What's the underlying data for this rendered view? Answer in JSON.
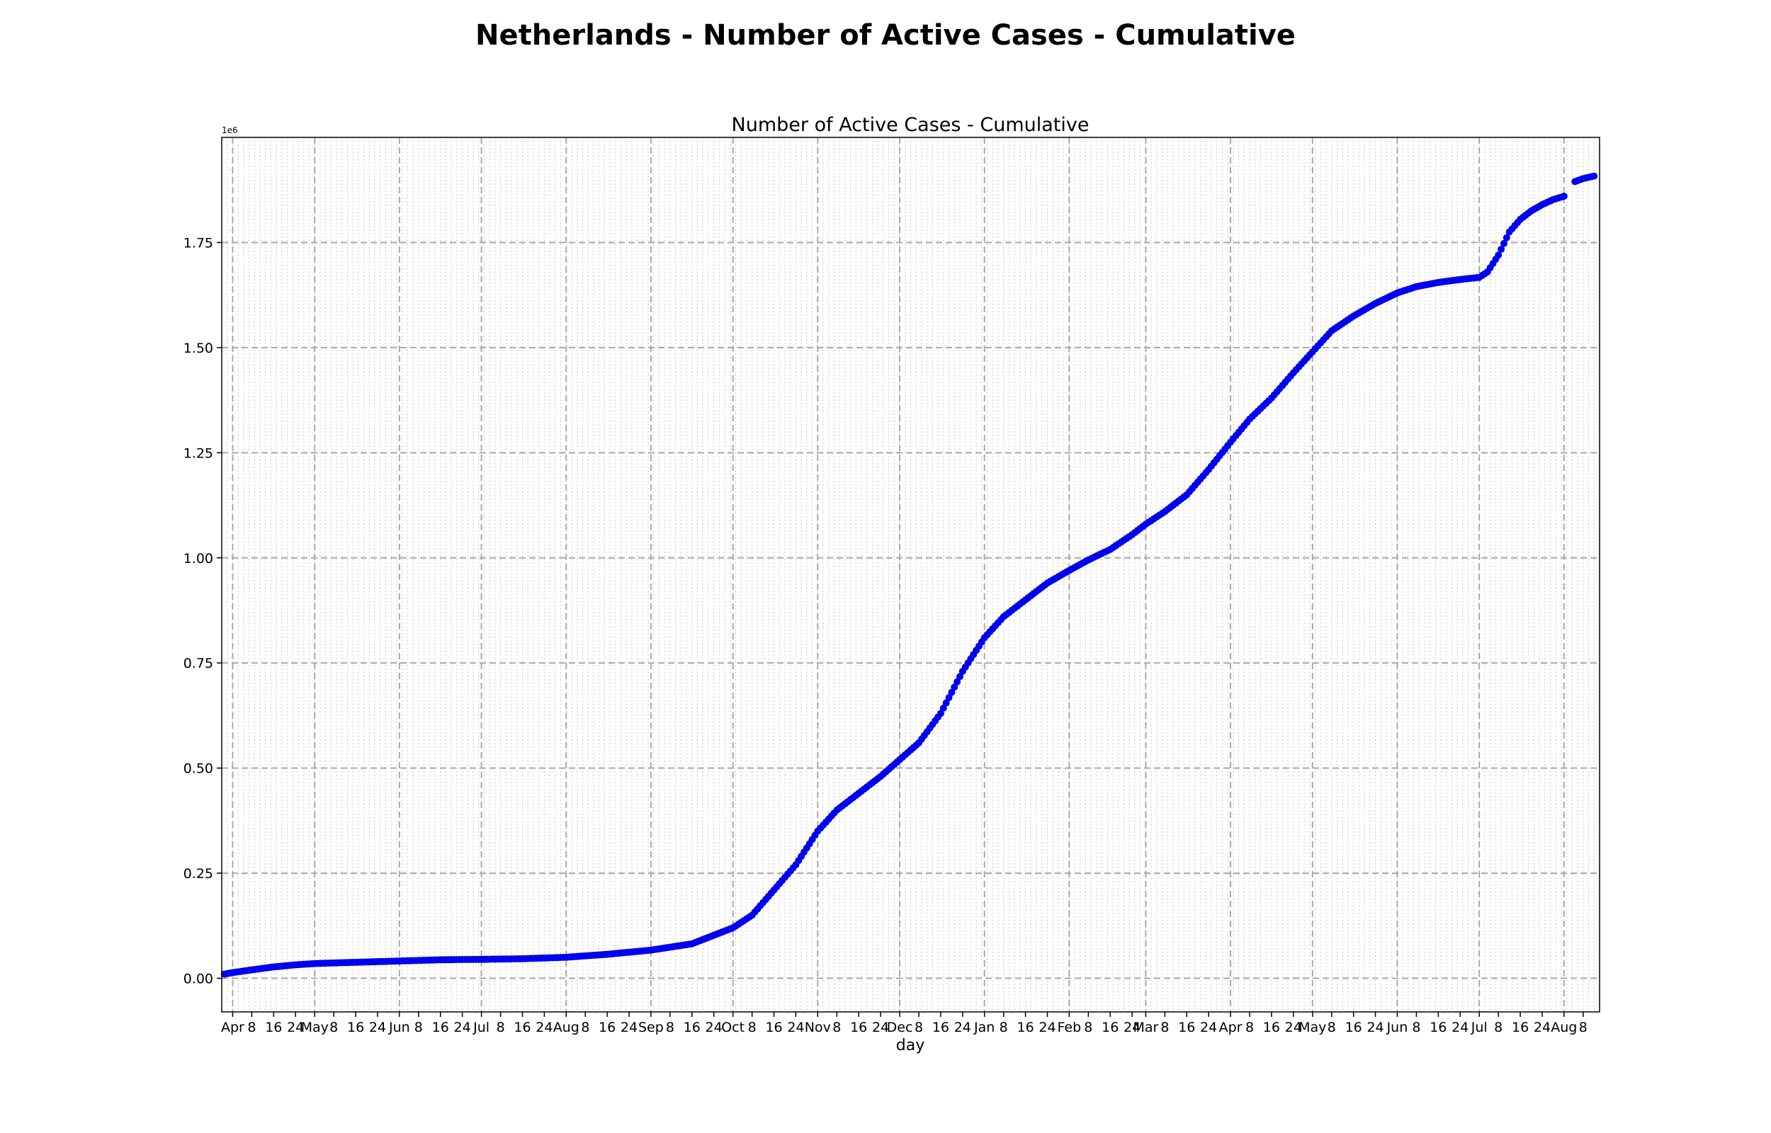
{
  "chart_data": {
    "type": "scatter",
    "title": "Netherlands - Number of Active Cases - Cumulative",
    "subtitle": "Number of Active Cases - Cumulative",
    "xlabel": "day",
    "ylabel": "",
    "y_offset_label": "1e6",
    "x_range": [
      "2020-03-28",
      "2021-08-14"
    ],
    "ylim": [
      -80000,
      2000000
    ],
    "y_ticks": [
      0,
      250000,
      500000,
      750000,
      1000000,
      1250000,
      1500000,
      1750000
    ],
    "y_tick_labels": [
      "0.00",
      "0.25",
      "0.50",
      "0.75",
      "1.00",
      "1.25",
      "1.50",
      "1.75"
    ],
    "x_ticks": [
      {
        "date": "2020-04-01",
        "label": "Apr",
        "major": true
      },
      {
        "date": "2020-04-08",
        "label": "8",
        "major": false
      },
      {
        "date": "2020-04-16",
        "label": "16",
        "major": false
      },
      {
        "date": "2020-04-24",
        "label": "24",
        "major": false
      },
      {
        "date": "2020-05-01",
        "label": "May",
        "major": true
      },
      {
        "date": "2020-05-08",
        "label": "8",
        "major": false
      },
      {
        "date": "2020-05-16",
        "label": "16",
        "major": false
      },
      {
        "date": "2020-05-24",
        "label": "24",
        "major": false
      },
      {
        "date": "2020-06-01",
        "label": "Jun",
        "major": true
      },
      {
        "date": "2020-06-08",
        "label": "8",
        "major": false
      },
      {
        "date": "2020-06-16",
        "label": "16",
        "major": false
      },
      {
        "date": "2020-06-24",
        "label": "24",
        "major": false
      },
      {
        "date": "2020-07-01",
        "label": "Jul",
        "major": true
      },
      {
        "date": "2020-07-08",
        "label": "8",
        "major": false
      },
      {
        "date": "2020-07-16",
        "label": "16",
        "major": false
      },
      {
        "date": "2020-07-24",
        "label": "24",
        "major": false
      },
      {
        "date": "2020-08-01",
        "label": "Aug",
        "major": true
      },
      {
        "date": "2020-08-08",
        "label": "8",
        "major": false
      },
      {
        "date": "2020-08-16",
        "label": "16",
        "major": false
      },
      {
        "date": "2020-08-24",
        "label": "24",
        "major": false
      },
      {
        "date": "2020-09-01",
        "label": "Sep",
        "major": true
      },
      {
        "date": "2020-09-08",
        "label": "8",
        "major": false
      },
      {
        "date": "2020-09-16",
        "label": "16",
        "major": false
      },
      {
        "date": "2020-09-24",
        "label": "24",
        "major": false
      },
      {
        "date": "2020-10-01",
        "label": "Oct",
        "major": true
      },
      {
        "date": "2020-10-08",
        "label": "8",
        "major": false
      },
      {
        "date": "2020-10-16",
        "label": "16",
        "major": false
      },
      {
        "date": "2020-10-24",
        "label": "24",
        "major": false
      },
      {
        "date": "2020-11-01",
        "label": "Nov",
        "major": true
      },
      {
        "date": "2020-11-08",
        "label": "8",
        "major": false
      },
      {
        "date": "2020-11-16",
        "label": "16",
        "major": false
      },
      {
        "date": "2020-11-24",
        "label": "24",
        "major": false
      },
      {
        "date": "2020-12-01",
        "label": "Dec",
        "major": true
      },
      {
        "date": "2020-12-08",
        "label": "8",
        "major": false
      },
      {
        "date": "2020-12-16",
        "label": "16",
        "major": false
      },
      {
        "date": "2020-12-24",
        "label": "24",
        "major": false
      },
      {
        "date": "2021-01-01",
        "label": "Jan",
        "major": true
      },
      {
        "date": "2021-01-08",
        "label": "8",
        "major": false
      },
      {
        "date": "2021-01-16",
        "label": "16",
        "major": false
      },
      {
        "date": "2021-01-24",
        "label": "24",
        "major": false
      },
      {
        "date": "2021-02-01",
        "label": "Feb",
        "major": true
      },
      {
        "date": "2021-02-08",
        "label": "8",
        "major": false
      },
      {
        "date": "2021-02-16",
        "label": "16",
        "major": false
      },
      {
        "date": "2021-02-24",
        "label": "24",
        "major": false
      },
      {
        "date": "2021-03-01",
        "label": "Mar",
        "major": true
      },
      {
        "date": "2021-03-08",
        "label": "8",
        "major": false
      },
      {
        "date": "2021-03-16",
        "label": "16",
        "major": false
      },
      {
        "date": "2021-03-24",
        "label": "24",
        "major": false
      },
      {
        "date": "2021-04-01",
        "label": "Apr",
        "major": true
      },
      {
        "date": "2021-04-08",
        "label": "8",
        "major": false
      },
      {
        "date": "2021-04-16",
        "label": "16",
        "major": false
      },
      {
        "date": "2021-04-24",
        "label": "24",
        "major": false
      },
      {
        "date": "2021-05-01",
        "label": "May",
        "major": true
      },
      {
        "date": "2021-05-08",
        "label": "8",
        "major": false
      },
      {
        "date": "2021-05-16",
        "label": "16",
        "major": false
      },
      {
        "date": "2021-05-24",
        "label": "24",
        "major": false
      },
      {
        "date": "2021-06-01",
        "label": "Jun",
        "major": true
      },
      {
        "date": "2021-06-08",
        "label": "8",
        "major": false
      },
      {
        "date": "2021-06-16",
        "label": "16",
        "major": false
      },
      {
        "date": "2021-06-24",
        "label": "24",
        "major": false
      },
      {
        "date": "2021-07-01",
        "label": "Jul",
        "major": true
      },
      {
        "date": "2021-07-08",
        "label": "8",
        "major": false
      },
      {
        "date": "2021-07-16",
        "label": "16",
        "major": false
      },
      {
        "date": "2021-07-24",
        "label": "24",
        "major": false
      },
      {
        "date": "2021-08-01",
        "label": "Aug",
        "major": true
      },
      {
        "date": "2021-08-08",
        "label": "8",
        "major": false
      }
    ],
    "grid": {
      "major": "dashed",
      "minor": "dotted",
      "minor_interval_days": 2
    },
    "marker_color": "#0000ee",
    "series": [
      {
        "points": [
          [
            "2020-03-29",
            10000
          ],
          [
            "2020-04-01",
            13500
          ],
          [
            "2020-04-08",
            20000
          ],
          [
            "2020-04-16",
            27000
          ],
          [
            "2020-04-24",
            32000
          ],
          [
            "2020-05-01",
            35000
          ],
          [
            "2020-05-16",
            38000
          ],
          [
            "2020-06-01",
            41000
          ],
          [
            "2020-06-16",
            44000
          ],
          [
            "2020-07-01",
            45000
          ],
          [
            "2020-07-16",
            46500
          ],
          [
            "2020-08-01",
            50000
          ],
          [
            "2020-08-16",
            57000
          ],
          [
            "2020-09-01",
            67000
          ],
          [
            "2020-09-16",
            82000
          ],
          [
            "2020-10-01",
            120000
          ],
          [
            "2020-10-08",
            150000
          ],
          [
            "2020-10-16",
            210000
          ],
          [
            "2020-10-24",
            270000
          ],
          [
            "2020-11-01",
            350000
          ],
          [
            "2020-11-08",
            400000
          ],
          [
            "2020-11-16",
            440000
          ],
          [
            "2020-11-24",
            480000
          ],
          [
            "2020-12-01",
            520000
          ],
          [
            "2020-12-08",
            560000
          ],
          [
            "2020-12-16",
            630000
          ],
          [
            "2020-12-24",
            730000
          ],
          [
            "2021-01-01",
            810000
          ],
          [
            "2021-01-08",
            860000
          ],
          [
            "2021-01-16",
            900000
          ],
          [
            "2021-01-24",
            940000
          ],
          [
            "2021-02-01",
            970000
          ],
          [
            "2021-02-08",
            995000
          ],
          [
            "2021-02-16",
            1020000
          ],
          [
            "2021-02-24",
            1055000
          ],
          [
            "2021-03-01",
            1080000
          ],
          [
            "2021-03-08",
            1110000
          ],
          [
            "2021-03-16",
            1150000
          ],
          [
            "2021-03-24",
            1210000
          ],
          [
            "2021-04-01",
            1275000
          ],
          [
            "2021-04-08",
            1330000
          ],
          [
            "2021-04-16",
            1380000
          ],
          [
            "2021-04-24",
            1440000
          ],
          [
            "2021-05-01",
            1490000
          ],
          [
            "2021-05-08",
            1540000
          ],
          [
            "2021-05-16",
            1575000
          ],
          [
            "2021-05-24",
            1605000
          ],
          [
            "2021-06-01",
            1630000
          ],
          [
            "2021-06-08",
            1645000
          ],
          [
            "2021-06-16",
            1655000
          ],
          [
            "2021-06-24",
            1662000
          ],
          [
            "2021-07-01",
            1667000
          ],
          [
            "2021-07-04",
            1680000
          ],
          [
            "2021-07-08",
            1720000
          ],
          [
            "2021-07-12",
            1775000
          ],
          [
            "2021-07-16",
            1805000
          ],
          [
            "2021-07-20",
            1825000
          ],
          [
            "2021-07-24",
            1840000
          ],
          [
            "2021-07-28",
            1852000
          ],
          [
            "2021-08-01",
            1860000
          ]
        ]
      },
      {
        "points": [
          [
            "2021-08-05",
            1895000
          ],
          [
            "2021-08-08",
            1902000
          ],
          [
            "2021-08-12",
            1908000
          ]
        ]
      }
    ]
  }
}
